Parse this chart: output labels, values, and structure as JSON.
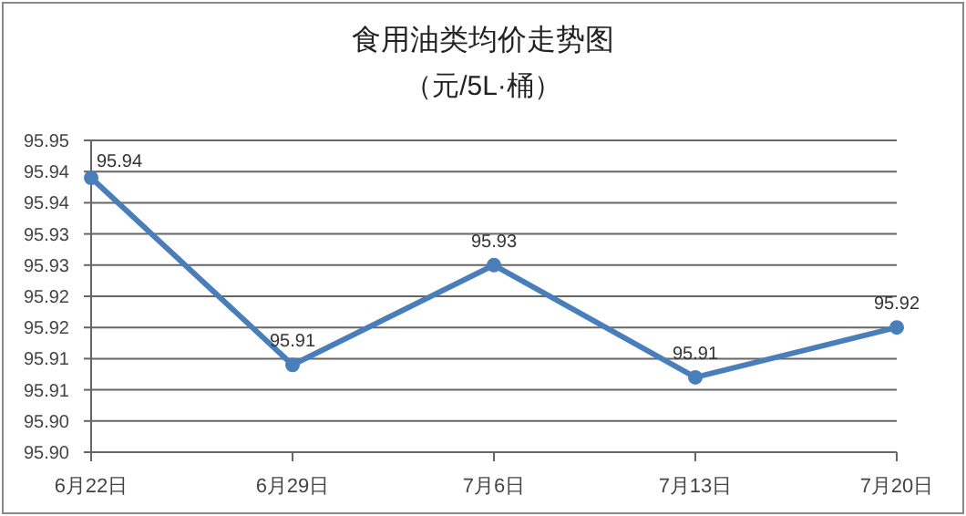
{
  "chart_data": {
    "type": "line",
    "title": "食用油类均价走势图",
    "subtitle": "（元/5L·桶）",
    "categories": [
      "6月22日",
      "6月29日",
      "7月6日",
      "7月13日",
      "7月20日"
    ],
    "series": [
      {
        "color": "#4a7ebb",
        "values": [
          95.944,
          95.914,
          95.93,
          95.912,
          95.92
        ],
        "value_labels": [
          "95.94",
          "95.91",
          "95.93",
          "95.91",
          "95.92"
        ]
      }
    ],
    "ylim": [
      95.9,
      95.95
    ],
    "yticks": [
      {
        "value": 95.9,
        "label": "95.90"
      },
      {
        "value": 95.905,
        "label": "95.90"
      },
      {
        "value": 95.91,
        "label": "95.91"
      },
      {
        "value": 95.915,
        "label": "95.91"
      },
      {
        "value": 95.92,
        "label": "95.92"
      },
      {
        "value": 95.925,
        "label": "95.92"
      },
      {
        "value": 95.93,
        "label": "95.93"
      },
      {
        "value": 95.935,
        "label": "95.93"
      },
      {
        "value": 95.94,
        "label": "95.94"
      },
      {
        "value": 95.945,
        "label": "95.94"
      },
      {
        "value": 95.95,
        "label": "95.95"
      }
    ],
    "grid": "y",
    "marker": "circle",
    "line_style": "solid"
  }
}
